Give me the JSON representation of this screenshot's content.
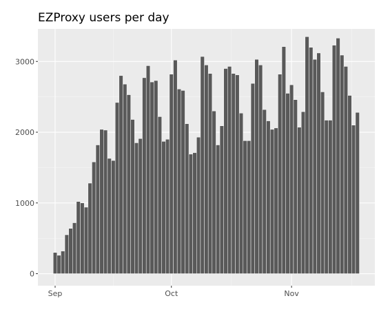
{
  "chart_data": {
    "type": "bar",
    "title": "EZProxy users per day",
    "xlabel": "",
    "ylabel": "",
    "x_start": "2019-09-01",
    "x_tick_labels": [
      {
        "label": "Sep",
        "date": "2019-09-01"
      },
      {
        "label": "Oct",
        "date": "2019-10-01"
      },
      {
        "label": "Nov",
        "date": "2019-11-01"
      }
    ],
    "y_ticks": [
      0,
      1000,
      2000,
      3000
    ],
    "y_tick_labels": [
      "0",
      "1000",
      "2000",
      "3000"
    ],
    "ylim": [
      -170,
      3460
    ],
    "grid": true,
    "legend": "none",
    "colors": {
      "bar_fill": "#595959",
      "bar_stroke": "#ffffff",
      "panel": "#ebebeb",
      "grid_major": "#ffffff",
      "grid_minor": "#f5f5f5",
      "tick_text": "#4d4d4d"
    },
    "values": [
      300,
      260,
      320,
      550,
      640,
      720,
      1020,
      1000,
      940,
      1280,
      1580,
      1820,
      2040,
      2030,
      1630,
      1600,
      2420,
      2800,
      2680,
      2530,
      2180,
      1850,
      1910,
      2770,
      2940,
      2710,
      2730,
      2220,
      1870,
      1900,
      2820,
      3020,
      2610,
      2590,
      2120,
      1690,
      1710,
      1930,
      3070,
      2950,
      2830,
      2300,
      1820,
      2090,
      2900,
      2930,
      2830,
      2810,
      2270,
      1880,
      1880,
      2690,
      3030,
      2950,
      2320,
      2160,
      2040,
      2060,
      2820,
      3210,
      2550,
      2670,
      2460,
      2070,
      2290,
      3350,
      3200,
      3030,
      3120,
      2570,
      2170,
      2170,
      3230,
      3330,
      3090,
      2930,
      2520,
      2100,
      2280
    ]
  }
}
